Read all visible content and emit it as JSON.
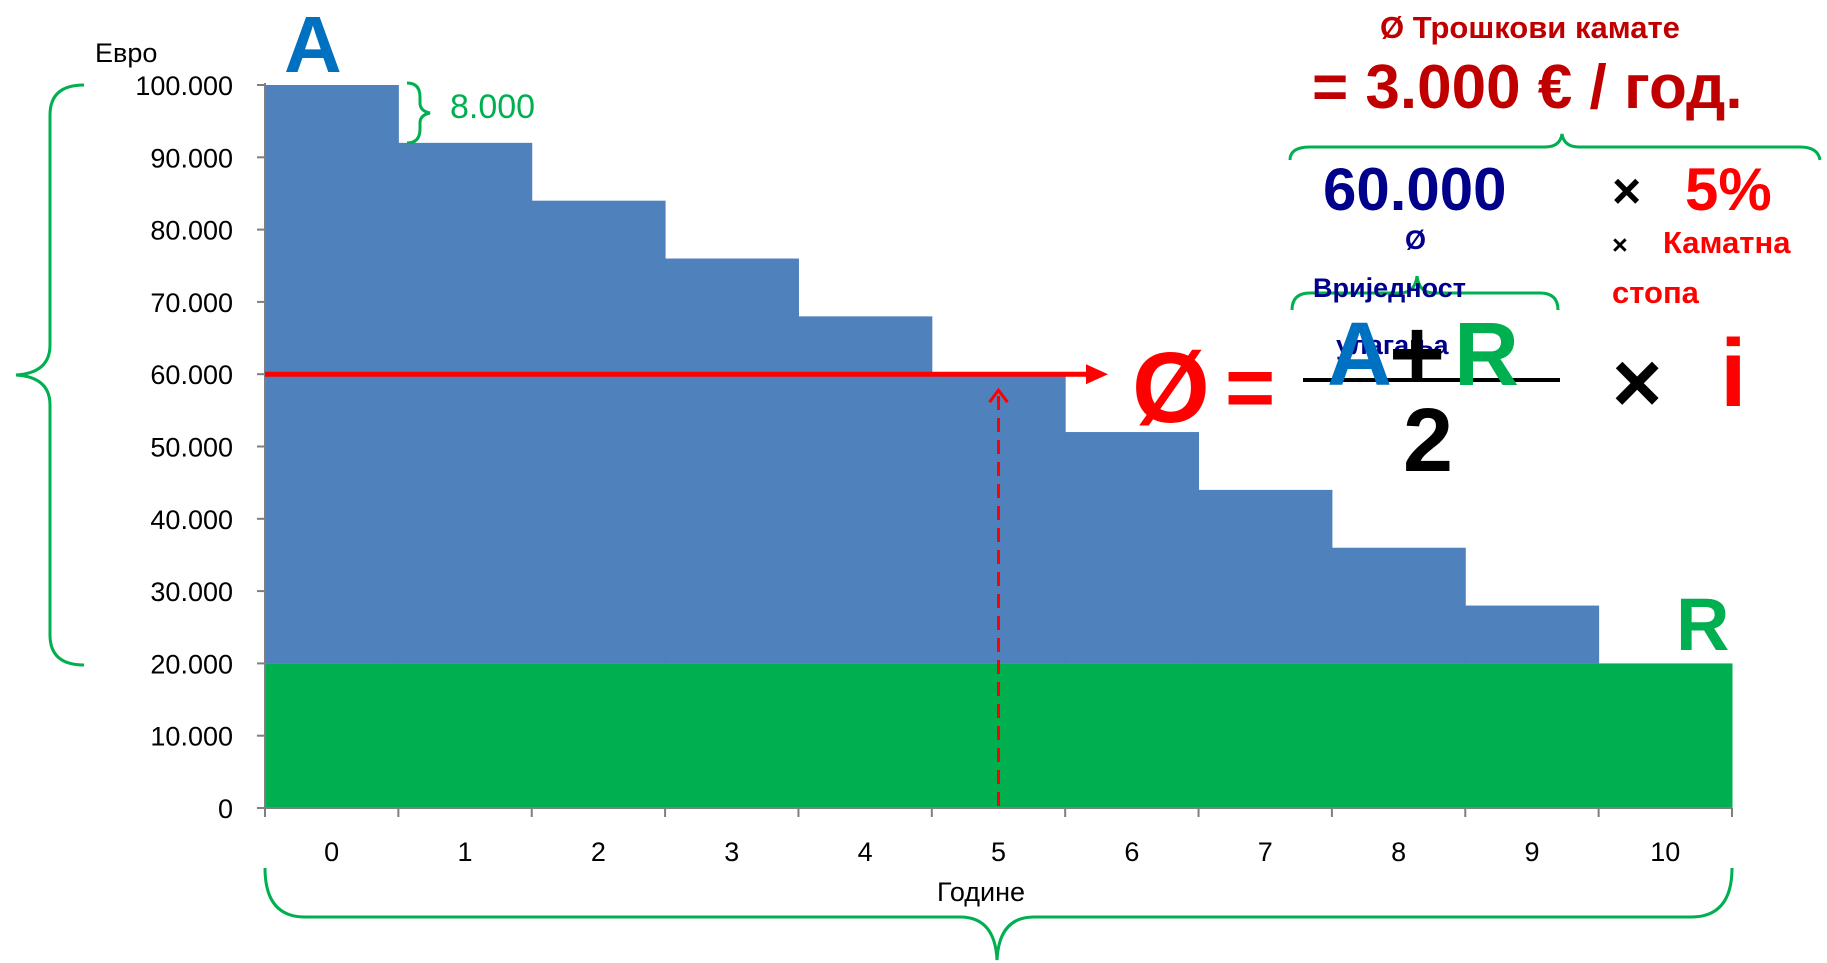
{
  "colors": {
    "blue": "#4f81bd",
    "green": "#00b050",
    "red": "#ff0000",
    "dark_red": "#c00000",
    "dark_blue": "#00008b",
    "label_blue": "#0070c0",
    "brace_green": "#00b050",
    "black": "#000000"
  },
  "chart_data": {
    "type": "bar",
    "stacked": true,
    "ylabel": "Евро",
    "xlabel": "Године",
    "ylim": [
      0,
      100000
    ],
    "ytick_step": 10000,
    "yticks": [
      "0",
      "10.000",
      "20.000",
      "30.000",
      "40.000",
      "50.000",
      "60.000",
      "70.000",
      "80.000",
      "90.000",
      "100.000"
    ],
    "categories": [
      "0",
      "1",
      "2",
      "3",
      "4",
      "5",
      "6",
      "7",
      "8",
      "9",
      "10"
    ],
    "series": [
      {
        "name": "",
        "color": "#00b050",
        "values": [
          20000,
          20000,
          20000,
          20000,
          20000,
          20000,
          20000,
          20000,
          20000,
          20000,
          20000
        ]
      },
      {
        "name": "",
        "color": "#4f81bd",
        "values": [
          80000,
          72000,
          64000,
          56000,
          48000,
          40000,
          32000,
          24000,
          16000,
          8000,
          0
        ]
      }
    ],
    "average_line": 60000,
    "average_marker_category": "5"
  },
  "annotations": {
    "a_label": "A",
    "r_label": "R",
    "step_label": "8.000",
    "formula_symbol": "Ø",
    "equals": "=",
    "formula_a": "A",
    "formula_plus": "+",
    "formula_r": "R",
    "formula_denominator": "2",
    "times": "×",
    "formula_i": "i",
    "cost_title": "Ø Трошкови камате",
    "cost_value": "= 3.000 € / год.",
    "avg_value": "60.000",
    "rate_value": "5%",
    "avg_caption_line1": "Ø",
    "avg_caption_line2": "Вриједност",
    "avg_caption_line3": "улагања",
    "rate_caption_times": "×",
    "rate_caption_line1": "Каматна",
    "rate_caption_line2": "стопа"
  }
}
